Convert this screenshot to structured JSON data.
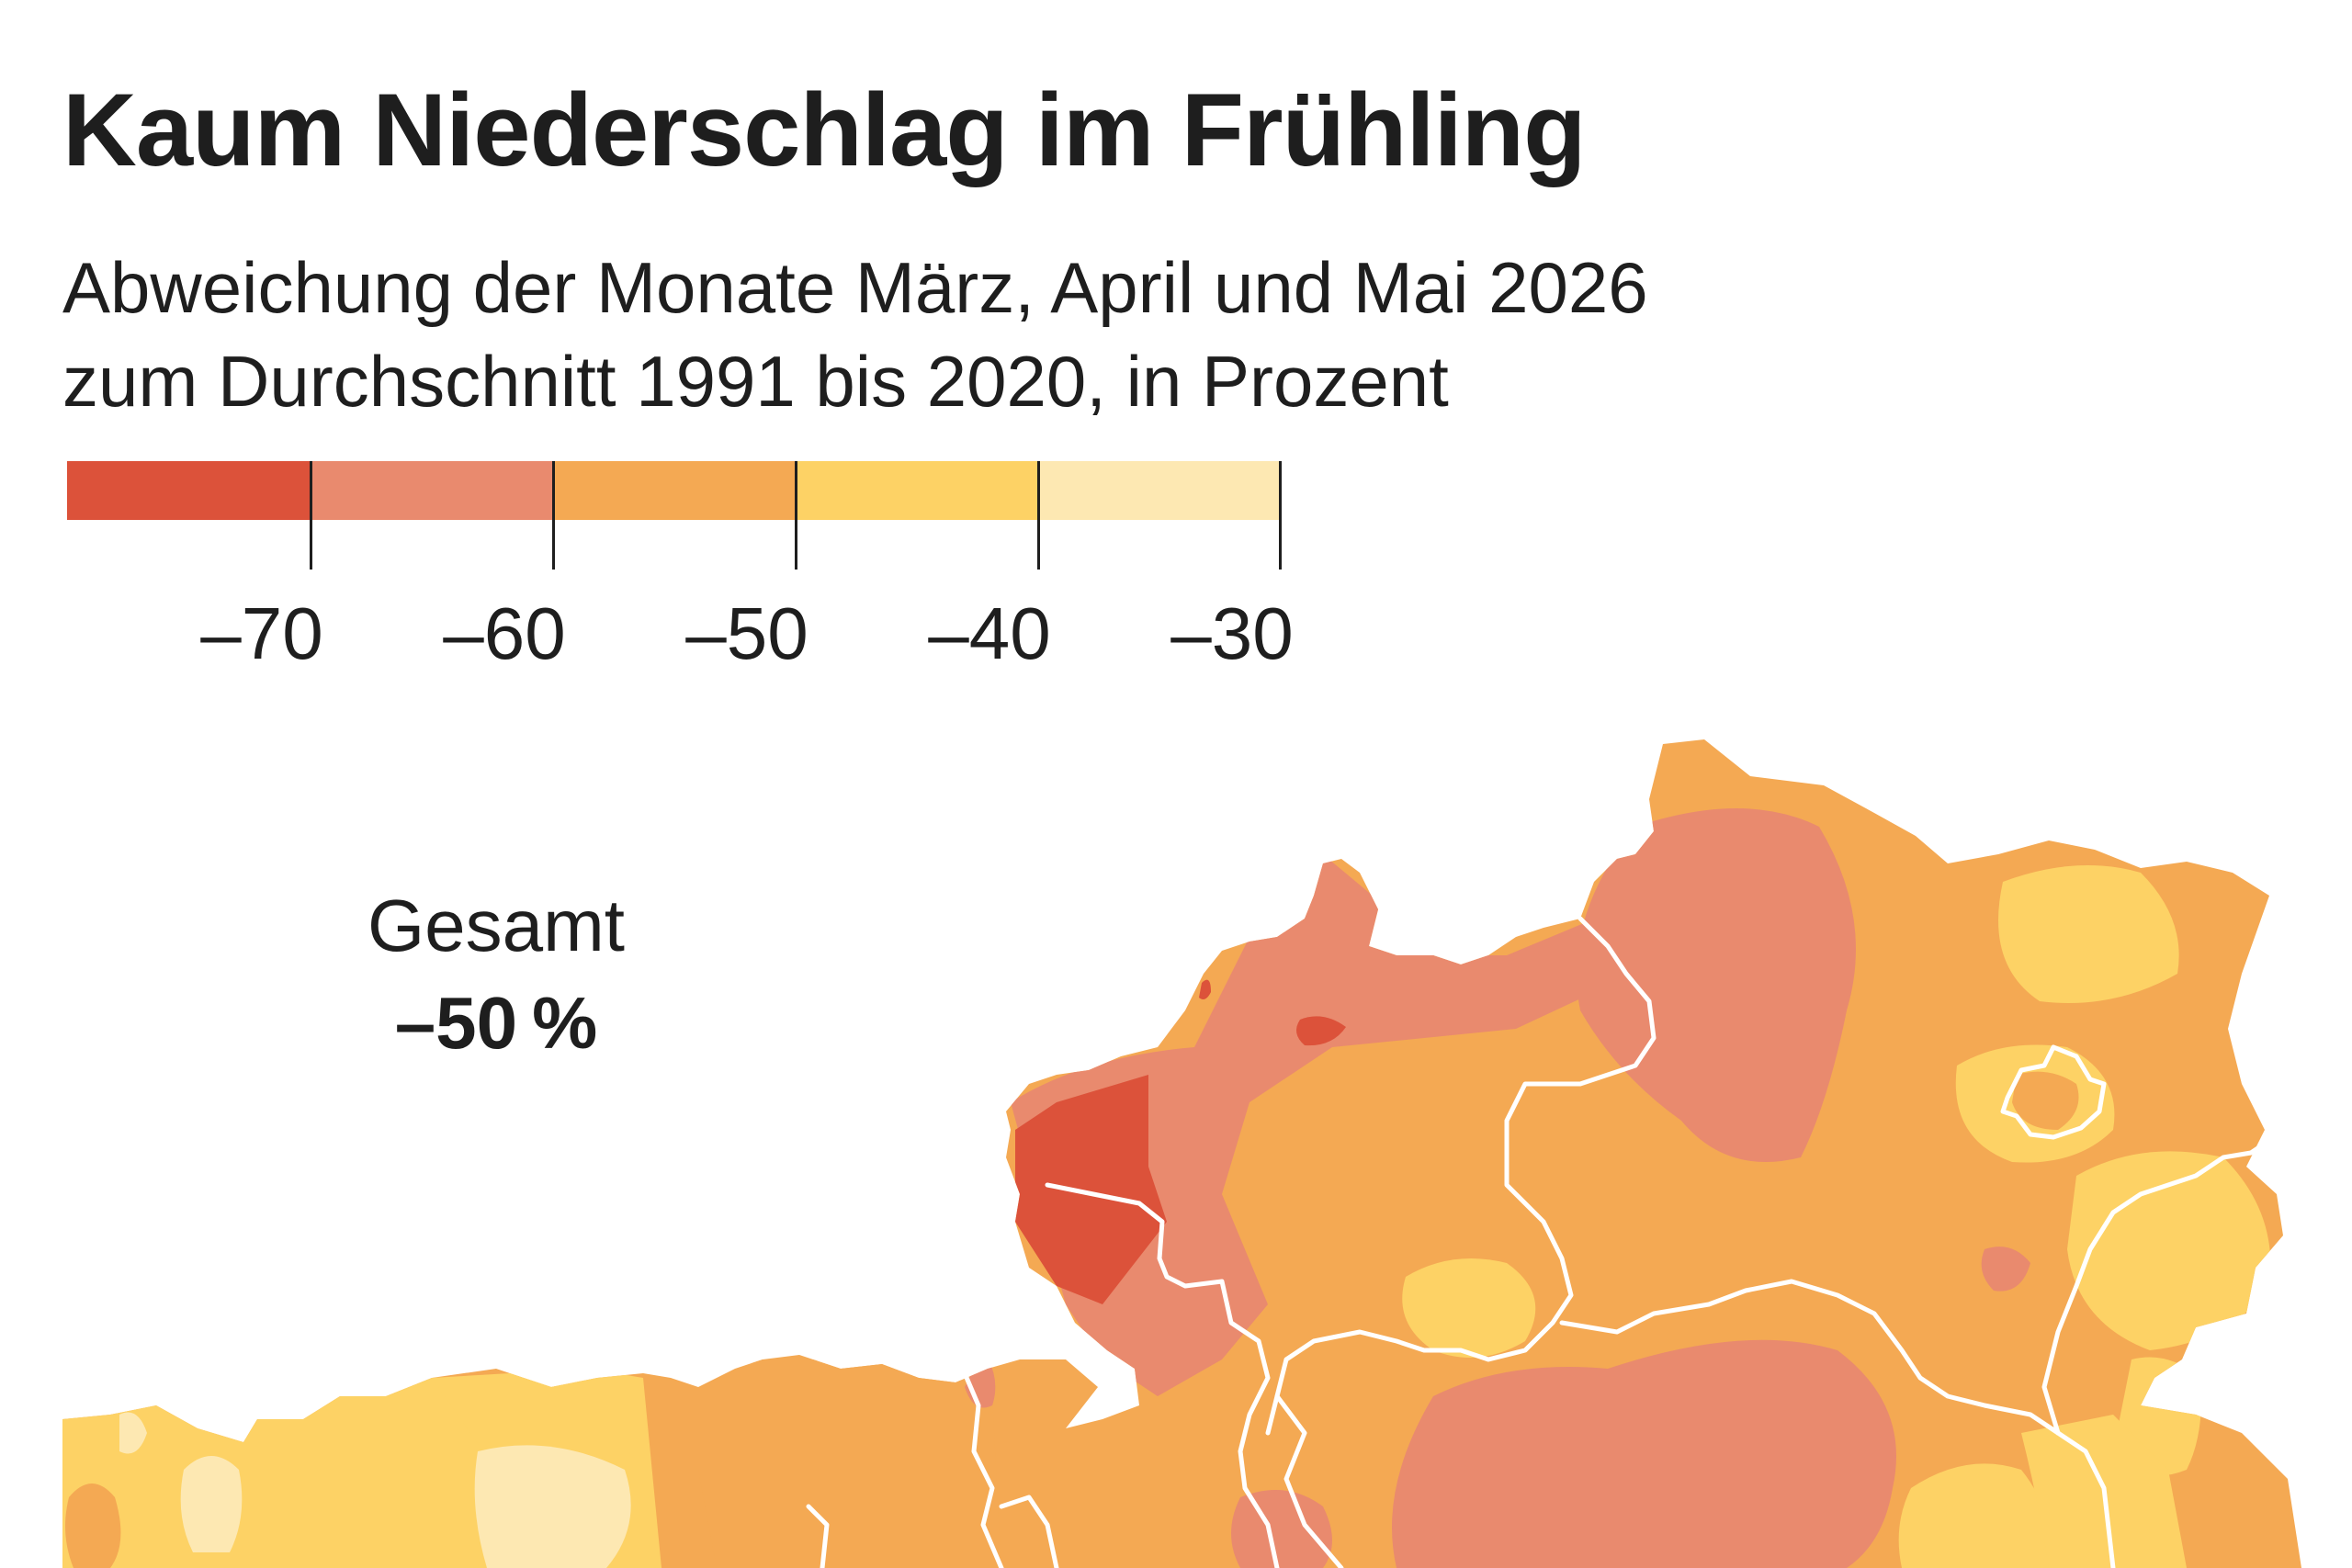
{
  "title": "Kaum Niederschlag im Frühling",
  "subtitle": {
    "line1": "Abweichung der Monate März, April und Mai 2026",
    "line2": "zum Durchschnitt 1991 bis 2020, in Prozent"
  },
  "legend": {
    "bins": [
      {
        "color": "#dc523a"
      },
      {
        "color": "#e98a6e"
      },
      {
        "color": "#f4a953"
      },
      {
        "color": "#fdd265"
      },
      {
        "color": "#fde8b2"
      }
    ],
    "breaks": [
      "–70",
      "–60",
      "–50",
      "–40",
      "–30"
    ],
    "break_values": [
      -70,
      -60,
      -50,
      -40,
      -30
    ]
  },
  "summary": {
    "label": "Gesamt",
    "value": "–50 %"
  },
  "colors": {
    "background": "#ffffff",
    "text": "#1e1e1e",
    "borders": "#ffffff"
  }
}
